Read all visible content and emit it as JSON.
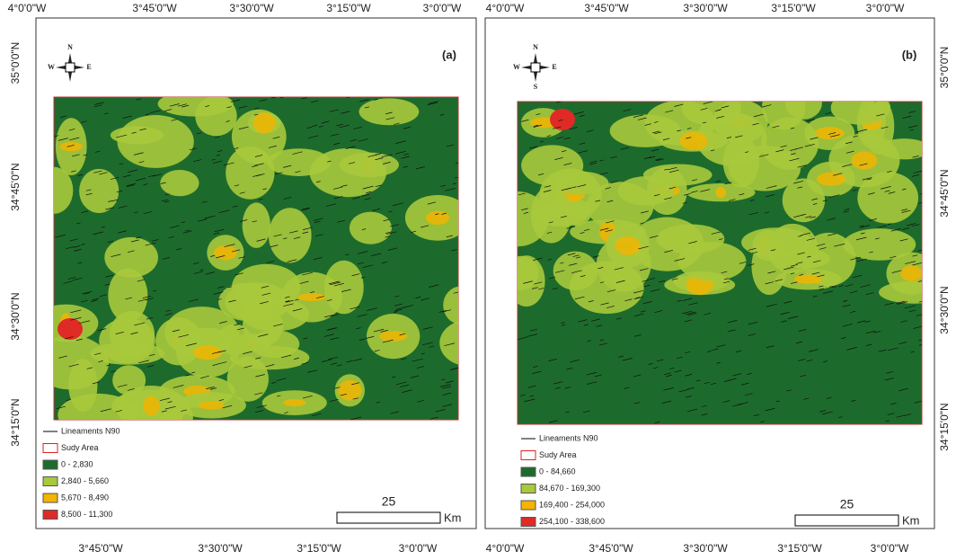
{
  "panels": [
    {
      "label": "(a)",
      "compass": {
        "n": "N",
        "w": "W",
        "e": "E"
      },
      "top_ticks": [
        "4°0'0\"W",
        "3°45'0\"W",
        "3°30'0\"W",
        "3°15'0\"W",
        "3°0'0\"W"
      ],
      "bottom_ticks": [
        "3°45'0\"W",
        "3°30'0\"W",
        "3°15'0\"W",
        "3°0'0\"W"
      ],
      "side_ticks": [
        "35°0'0\"N",
        "34°45'0\"N",
        "34°30'0\"N",
        "34°15'0\"N"
      ],
      "legend": [
        {
          "label": "Lineaments N90"
        },
        {
          "label": "Sudy Area"
        },
        {
          "label": "0 - 2,830",
          "color": "#1d6b2c"
        },
        {
          "label": "2,840 - 5,660",
          "color": "#a8c93c"
        },
        {
          "label": "5,670 - 8,490",
          "color": "#f4b400"
        },
        {
          "label": "8,500 - 11,300",
          "color": "#e02a26"
        }
      ],
      "scale": "25",
      "unit": "Km"
    },
    {
      "label": "(b)",
      "compass": {
        "n": "N",
        "w": "W",
        "e": "E",
        "s": "S"
      },
      "top_ticks": [
        "4°0'0\"W",
        "3°45'0\"W",
        "3°30'0\"W",
        "3°15'0\"W",
        "3°0'0\"W"
      ],
      "bottom_ticks": [
        "4°0'0\"W",
        "3°45'0\"W",
        "3°30'0\"W",
        "3°15'0\"W",
        "3°0'0\"W"
      ],
      "side_ticks": [
        "35°0'0\"N",
        "34°45'0\"N",
        "34°30'0\"N",
        "34°15'0\"N"
      ],
      "legend": [
        {
          "label": "Lineaments N90"
        },
        {
          "label": "Sudy Area"
        },
        {
          "label": "0 - 84,660",
          "color": "#1d6b2c"
        },
        {
          "label": "84,670 - 169,300",
          "color": "#a8c93c"
        },
        {
          "label": "169,400 - 254,000",
          "color": "#f4b400"
        },
        {
          "label": "254,100 - 338,600",
          "color": "#e02a26"
        }
      ],
      "scale": "25",
      "unit": "Km"
    }
  ]
}
